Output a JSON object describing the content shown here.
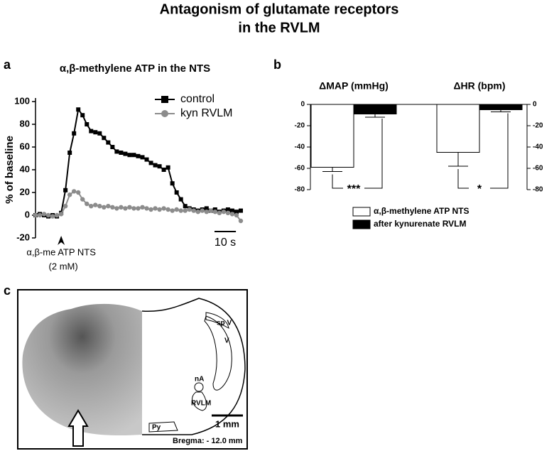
{
  "figure_title": [
    "Antagonism of glutamate receptors",
    "in the RVLM"
  ],
  "panel_labels": [
    "a",
    "b",
    "c"
  ],
  "chart_data": [
    {
      "type": "line",
      "title": "α,β-methylene ATP in the NTS",
      "y_label": "% of baseline",
      "x": [
        0,
        2,
        4,
        6,
        8,
        10,
        12,
        14,
        16,
        18,
        20,
        22,
        24,
        26,
        28,
        30,
        32,
        34,
        36,
        38,
        40,
        42,
        44,
        46,
        48,
        50,
        52,
        54,
        56,
        58,
        60,
        62,
        64,
        66,
        68,
        70,
        72,
        74,
        76,
        78,
        80,
        82,
        84,
        86,
        88,
        90,
        92,
        94,
        96
      ],
      "series": [
        {
          "name": "control",
          "color": "#000000",
          "marker": "square",
          "values": [
            0,
            1,
            0,
            -1,
            0,
            -1,
            2,
            22,
            55,
            72,
            93,
            88,
            80,
            74,
            73,
            72,
            68,
            64,
            60,
            56,
            55,
            54,
            53,
            53,
            52,
            51,
            49,
            46,
            44,
            43,
            40,
            42,
            28,
            20,
            14,
            8,
            6,
            5,
            4,
            5,
            6,
            4,
            5,
            3,
            4,
            5,
            4,
            3,
            4
          ]
        },
        {
          "name": "kyn RVLM",
          "color": "#8c8c8c",
          "marker": "circle",
          "values": [
            0,
            0,
            1,
            0,
            -1,
            0,
            1,
            8,
            18,
            21,
            20,
            14,
            10,
            8,
            9,
            8,
            7,
            8,
            7,
            6,
            7,
            6,
            7,
            6,
            6,
            7,
            6,
            5,
            6,
            5,
            6,
            5,
            4,
            5,
            4,
            4,
            5,
            4,
            3,
            4,
            3,
            4,
            3,
            2,
            3,
            2,
            1,
            0,
            -5
          ]
        }
      ],
      "xlim": [
        0,
        98
      ],
      "ylim": [
        -20,
        100
      ],
      "yticks": [
        -20,
        0,
        20,
        40,
        60,
        80,
        100
      ],
      "legend": "upper right",
      "annotation": {
        "x": 12,
        "lines": [
          "α,β-me ATP NTS",
          "(2 mM)"
        ]
      },
      "scale_bar": {
        "value": 10,
        "label": "10 s"
      }
    },
    {
      "type": "bar",
      "categories": [
        "ΔMAP (mmHg)",
        "ΔHR (bpm)"
      ],
      "series": [
        {
          "name": "α,β-methylene ATP NTS",
          "color": "#ffffff",
          "values": [
            -59,
            -45
          ],
          "errors": [
            4,
            13
          ]
        },
        {
          "name": "after kynurenate RVLM",
          "color": "#000000",
          "values": [
            -9,
            -5
          ],
          "errors": [
            3,
            2
          ]
        }
      ],
      "ylim": [
        -80,
        0
      ],
      "yticks": [
        -80,
        -60,
        -40,
        -20,
        0
      ],
      "y2lim": [
        -80,
        0
      ],
      "y2ticks": [
        -80,
        -60,
        -40,
        -20,
        0
      ],
      "legend": "lower center",
      "significance": [
        "***",
        "*"
      ]
    }
  ],
  "histology": {
    "labels": [
      "sp V",
      "V",
      "nA",
      "RVLM",
      "Py"
    ],
    "scale_bar": "1 mm",
    "bregma": "Bregma: - 12.0 mm"
  }
}
